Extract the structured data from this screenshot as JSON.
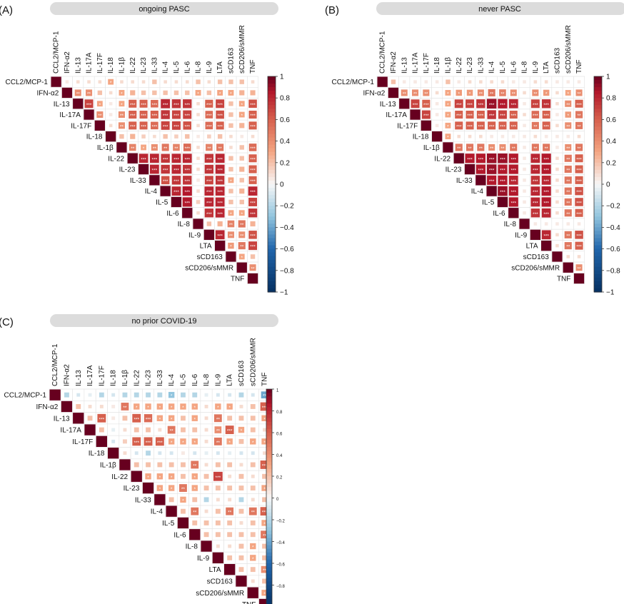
{
  "panels": [
    {
      "letter": "(A)",
      "title": "ongoing PASC"
    },
    {
      "letter": "(B)",
      "title": "never PASC"
    },
    {
      "letter": "(C)",
      "title": "no prior COVID-19"
    }
  ],
  "variables": [
    "CCL2/MCP-1",
    "IFN-α2",
    "IL-13",
    "IL-17A",
    "IL-17F",
    "IL-18",
    "IL-1β",
    "IL-22",
    "IL-23",
    "IL-33",
    "IL-4",
    "IL-5",
    "IL-6",
    "IL-8",
    "IL-9",
    "LTA",
    "sCD163",
    "sCD206/sMMR",
    "TNF"
  ],
  "colorbar": {
    "ticks": [
      "1",
      "0.8",
      "0.6",
      "0.4",
      "0.2",
      "0",
      "−0.2",
      "−0.4",
      "−0.6",
      "−0.8",
      "−1"
    ],
    "neg_color": "#053061",
    "zero_color": "#f7f7f7",
    "pos_color": "#67001f"
  },
  "chart_data": [
    {
      "type": "heatmap",
      "panel": "(A)",
      "title": "ongoing PASC",
      "colorbar_range": [
        -1,
        1
      ],
      "note": "upper-triangular correlation matrix; asterisks mark significance",
      "correlations": [
        [
          1,
          0.05,
          0.1,
          0.1,
          0.1,
          0.3,
          0.1,
          0.1,
          0.1,
          0.2,
          0.1,
          0.1,
          0.1,
          0.2,
          0.1,
          0.2,
          0.2,
          0.2,
          0.1
        ],
        [
          null,
          1,
          0.4,
          0.4,
          0.2,
          0.1,
          0.3,
          0.25,
          0.2,
          0.2,
          0.2,
          0.2,
          0.2,
          0.3,
          0.2,
          0.3,
          0.3,
          0.25,
          0.25
        ],
        [
          null,
          null,
          1,
          0.7,
          0.3,
          0.05,
          0.3,
          0.6,
          0.6,
          0.55,
          0.8,
          0.75,
          0.75,
          0.1,
          0.6,
          0.7,
          0.2,
          0.3,
          0.65
        ],
        [
          null,
          null,
          null,
          1,
          0.4,
          0.05,
          0.4,
          0.6,
          0.6,
          0.6,
          0.75,
          0.7,
          0.7,
          0.1,
          0.55,
          0.65,
          0.2,
          0.3,
          0.6
        ],
        [
          null,
          null,
          null,
          null,
          1,
          0.1,
          0.4,
          0.6,
          0.6,
          0.55,
          0.7,
          0.7,
          0.65,
          0.1,
          0.55,
          0.6,
          0.2,
          0.25,
          0.6
        ],
        [
          null,
          null,
          null,
          null,
          null,
          1,
          0.2,
          0.25,
          0.15,
          0.1,
          0.2,
          0.15,
          0.2,
          0.05,
          0.15,
          0.2,
          0.1,
          0.05,
          0.1
        ],
        [
          null,
          null,
          null,
          null,
          null,
          null,
          1,
          0.45,
          0.3,
          0.4,
          0.5,
          0.45,
          0.55,
          0.1,
          0.45,
          0.5,
          0.1,
          0.2,
          0.55
        ],
        [
          null,
          null,
          null,
          null,
          null,
          null,
          null,
          1,
          0.8,
          0.8,
          0.75,
          0.8,
          0.8,
          0.1,
          0.75,
          0.8,
          0.2,
          0.2,
          0.6
        ],
        [
          null,
          null,
          null,
          null,
          null,
          null,
          null,
          null,
          1,
          0.8,
          0.75,
          0.8,
          0.75,
          0.1,
          0.75,
          0.8,
          0.2,
          0.25,
          0.6
        ],
        [
          null,
          null,
          null,
          null,
          null,
          null,
          null,
          null,
          null,
          1,
          0.65,
          0.75,
          0.75,
          0.05,
          0.7,
          0.75,
          0.3,
          0.2,
          0.6
        ],
        [
          null,
          null,
          null,
          null,
          null,
          null,
          null,
          null,
          null,
          null,
          1,
          0.8,
          0.85,
          0.1,
          0.8,
          0.8,
          0.2,
          0.25,
          0.8
        ],
        [
          null,
          null,
          null,
          null,
          null,
          null,
          null,
          null,
          null,
          null,
          null,
          1,
          0.85,
          0.15,
          0.8,
          0.8,
          0.2,
          0.2,
          0.7
        ],
        [
          null,
          null,
          null,
          null,
          null,
          null,
          null,
          null,
          null,
          null,
          null,
          null,
          1,
          0.1,
          0.75,
          0.8,
          0.3,
          0.3,
          0.75
        ],
        [
          null,
          null,
          null,
          null,
          null,
          null,
          null,
          null,
          null,
          null,
          null,
          null,
          null,
          1,
          0.2,
          0.25,
          0.45,
          0.5,
          0.25
        ],
        [
          null,
          null,
          null,
          null,
          null,
          null,
          null,
          null,
          null,
          null,
          null,
          null,
          null,
          null,
          1,
          0.8,
          0.4,
          0.4,
          0.65
        ],
        [
          null,
          null,
          null,
          null,
          null,
          null,
          null,
          null,
          null,
          null,
          null,
          null,
          null,
          null,
          null,
          1,
          0.35,
          0.5,
          0.7
        ],
        [
          null,
          null,
          null,
          null,
          null,
          null,
          null,
          null,
          null,
          null,
          null,
          null,
          null,
          null,
          null,
          null,
          1,
          0.3,
          0.2
        ],
        [
          null,
          null,
          null,
          null,
          null,
          null,
          null,
          null,
          null,
          null,
          null,
          null,
          null,
          null,
          null,
          null,
          null,
          1,
          0.4
        ],
        [
          null,
          null,
          null,
          null,
          null,
          null,
          null,
          null,
          null,
          null,
          null,
          null,
          null,
          null,
          null,
          null,
          null,
          null,
          1
        ]
      ]
    },
    {
      "type": "heatmap",
      "panel": "(B)",
      "title": "never PASC",
      "colorbar_range": [
        -1,
        1
      ],
      "correlations": [
        [
          1,
          0.2,
          0.05,
          0.05,
          0.05,
          0.05,
          0.2,
          0.05,
          0.1,
          0.1,
          0.1,
          0.1,
          0.05,
          0.05,
          0.1,
          0.1,
          0.05,
          0.05,
          0.05
        ],
        [
          null,
          1,
          0.4,
          0.4,
          0.4,
          0.1,
          0.3,
          0.35,
          0.35,
          0.4,
          0.5,
          0.45,
          0.4,
          0.1,
          0.4,
          0.35,
          0.1,
          0.3,
          0.4
        ],
        [
          null,
          null,
          1,
          0.7,
          0.6,
          0.05,
          0.3,
          0.7,
          0.7,
          0.75,
          0.9,
          0.85,
          0.8,
          0.05,
          0.7,
          0.75,
          0.1,
          0.4,
          0.6
        ],
        [
          null,
          null,
          null,
          1,
          0.7,
          0.05,
          0.3,
          0.6,
          0.6,
          0.6,
          0.75,
          0.7,
          0.6,
          0.1,
          0.55,
          0.6,
          0.05,
          0.35,
          0.5
        ],
        [
          null,
          null,
          null,
          null,
          1,
          0.05,
          0.3,
          0.6,
          0.6,
          0.6,
          0.6,
          0.6,
          0.6,
          0.05,
          0.5,
          0.6,
          0.1,
          0.4,
          0.5
        ],
        [
          null,
          null,
          null,
          null,
          null,
          1,
          0.3,
          0.1,
          0.1,
          0.1,
          0.05,
          0.05,
          0.05,
          0.05,
          0.1,
          0.05,
          0.05,
          0.05,
          0.1
        ],
        [
          null,
          null,
          null,
          null,
          null,
          null,
          1,
          0.5,
          0.5,
          0.5,
          0.4,
          0.4,
          0.5,
          0.05,
          0.5,
          0.5,
          0.05,
          0.4,
          0.5
        ],
        [
          null,
          null,
          null,
          null,
          null,
          null,
          null,
          1,
          0.85,
          0.85,
          0.9,
          0.9,
          0.85,
          0.05,
          0.8,
          0.85,
          0.1,
          0.5,
          0.6
        ],
        [
          null,
          null,
          null,
          null,
          null,
          null,
          null,
          null,
          1,
          0.85,
          0.9,
          0.85,
          0.85,
          0.05,
          0.8,
          0.85,
          0.1,
          0.5,
          0.6
        ],
        [
          null,
          null,
          null,
          null,
          null,
          null,
          null,
          null,
          null,
          1,
          0.85,
          0.85,
          0.8,
          0.05,
          0.75,
          0.8,
          0.1,
          0.5,
          0.6
        ],
        [
          null,
          null,
          null,
          null,
          null,
          null,
          null,
          null,
          null,
          null,
          1,
          0.9,
          0.85,
          0.05,
          0.8,
          0.85,
          0.1,
          0.5,
          0.65
        ],
        [
          null,
          null,
          null,
          null,
          null,
          null,
          null,
          null,
          null,
          null,
          null,
          1,
          0.85,
          0.05,
          0.8,
          0.85,
          0.1,
          0.5,
          0.65
        ],
        [
          null,
          null,
          null,
          null,
          null,
          null,
          null,
          null,
          null,
          null,
          null,
          null,
          1,
          0.05,
          0.75,
          0.8,
          0.1,
          0.5,
          0.6
        ],
        [
          null,
          null,
          null,
          null,
          null,
          null,
          null,
          null,
          null,
          null,
          null,
          null,
          null,
          1,
          0.05,
          0.05,
          0.05,
          0.05,
          0.05
        ],
        [
          null,
          null,
          null,
          null,
          null,
          null,
          null,
          null,
          null,
          null,
          null,
          null,
          null,
          null,
          1,
          0.8,
          0.1,
          0.5,
          0.65
        ],
        [
          null,
          null,
          null,
          null,
          null,
          null,
          null,
          null,
          null,
          null,
          null,
          null,
          null,
          null,
          null,
          1,
          0.1,
          0.5,
          0.6
        ],
        [
          null,
          null,
          null,
          null,
          null,
          null,
          null,
          null,
          null,
          null,
          null,
          null,
          null,
          null,
          null,
          null,
          1,
          0.1,
          0.1
        ],
        [
          null,
          null,
          null,
          null,
          null,
          null,
          null,
          null,
          null,
          null,
          null,
          null,
          null,
          null,
          null,
          null,
          null,
          1,
          0.4
        ],
        [
          null,
          null,
          null,
          null,
          null,
          null,
          null,
          null,
          null,
          null,
          null,
          null,
          null,
          null,
          null,
          null,
          null,
          null,
          1
        ]
      ]
    },
    {
      "type": "heatmap",
      "panel": "(C)",
      "title": "no prior COVID-19",
      "colorbar_range": [
        -1,
        1
      ],
      "correlations": [
        [
          1,
          -0.2,
          -0.1,
          -0.05,
          -0.2,
          -0.1,
          -0.2,
          -0.2,
          -0.2,
          -0.2,
          -0.3,
          -0.2,
          -0.2,
          -0.05,
          -0.1,
          -0.1,
          -0.2,
          -0.1,
          -0.4
        ],
        [
          null,
          1,
          0.2,
          0.1,
          0.1,
          0.05,
          0.5,
          0.3,
          0.3,
          0.3,
          0.3,
          0.3,
          0.3,
          0.1,
          0.3,
          0.3,
          0.1,
          0.2,
          0.6
        ],
        [
          null,
          null,
          1,
          0.2,
          0.6,
          0.05,
          0.2,
          0.6,
          0.55,
          0.3,
          0.3,
          0.2,
          0.3,
          0.1,
          0.5,
          0.2,
          0.2,
          0.2,
          0.3
        ],
        [
          null,
          null,
          null,
          1,
          0.2,
          -0.05,
          0.1,
          0.2,
          0.2,
          0.1,
          0.5,
          0.2,
          0.2,
          0.1,
          0.4,
          0.6,
          0.3,
          0.2,
          0.1
        ],
        [
          null,
          null,
          null,
          null,
          1,
          -0.1,
          0.15,
          0.6,
          0.6,
          0.6,
          0.3,
          0.3,
          0.3,
          0.1,
          0.5,
          0.3,
          0.2,
          0.3,
          0.3
        ],
        [
          null,
          null,
          null,
          null,
          null,
          1,
          0.1,
          -0.1,
          -0.2,
          -0.1,
          -0.1,
          0.05,
          -0.1,
          -0.05,
          -0.1,
          -0.05,
          -0.1,
          -0.1,
          0.1
        ],
        [
          null,
          null,
          null,
          null,
          null,
          null,
          1,
          0.2,
          0.2,
          0.2,
          0.2,
          0.2,
          0.5,
          0.1,
          0.2,
          0.2,
          0.1,
          0.2,
          0.6
        ],
        [
          null,
          null,
          null,
          null,
          null,
          null,
          null,
          1,
          0.3,
          0.3,
          0.3,
          0.2,
          0.3,
          0.2,
          0.7,
          0.1,
          0.2,
          0.1,
          0.2
        ],
        [
          null,
          null,
          null,
          null,
          null,
          null,
          null,
          null,
          1,
          0.3,
          0.3,
          0.5,
          0.3,
          0.2,
          0.2,
          0.2,
          0.2,
          0.2,
          0.3
        ],
        [
          null,
          null,
          null,
          null,
          null,
          null,
          null,
          null,
          null,
          1,
          0.2,
          0.3,
          0.2,
          -0.2,
          0.1,
          0.1,
          -0.2,
          0.1,
          0.2
        ],
        [
          null,
          null,
          null,
          null,
          null,
          null,
          null,
          null,
          null,
          null,
          1,
          0.2,
          0.5,
          0.1,
          0.2,
          0.5,
          0.2,
          0.5,
          0.6
        ],
        [
          null,
          null,
          null,
          null,
          null,
          null,
          null,
          null,
          null,
          null,
          null,
          1,
          0.2,
          0.2,
          0.2,
          0.2,
          0.1,
          0.2,
          0.3
        ],
        [
          null,
          null,
          null,
          null,
          null,
          null,
          null,
          null,
          null,
          null,
          null,
          null,
          1,
          0.2,
          0.2,
          0.2,
          0.2,
          0.2,
          0.5
        ],
        [
          null,
          null,
          null,
          null,
          null,
          null,
          null,
          null,
          null,
          null,
          null,
          null,
          null,
          1,
          0.1,
          0.1,
          0.2,
          0.3,
          0.2
        ],
        [
          null,
          null,
          null,
          null,
          null,
          null,
          null,
          null,
          null,
          null,
          null,
          null,
          null,
          null,
          1,
          0.2,
          0.2,
          0.3,
          0.2
        ],
        [
          null,
          null,
          null,
          null,
          null,
          null,
          null,
          null,
          null,
          null,
          null,
          null,
          null,
          null,
          null,
          1,
          0.2,
          0.2,
          0.4
        ],
        [
          null,
          null,
          null,
          null,
          null,
          null,
          null,
          null,
          null,
          null,
          null,
          null,
          null,
          null,
          null,
          null,
          1,
          0.1,
          0.2
        ],
        [
          null,
          null,
          null,
          null,
          null,
          null,
          null,
          null,
          null,
          null,
          null,
          null,
          null,
          null,
          null,
          null,
          null,
          1,
          0.3
        ],
        [
          null,
          null,
          null,
          null,
          null,
          null,
          null,
          null,
          null,
          null,
          null,
          null,
          null,
          null,
          null,
          null,
          null,
          null,
          1
        ]
      ]
    }
  ]
}
